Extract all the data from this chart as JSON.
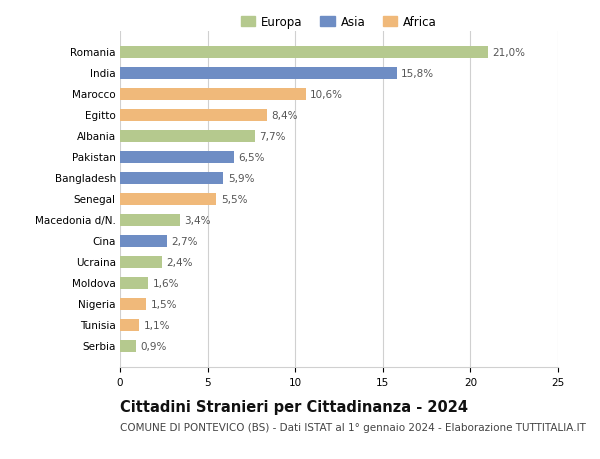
{
  "countries": [
    "Romania",
    "India",
    "Marocco",
    "Egitto",
    "Albania",
    "Pakistan",
    "Bangladesh",
    "Senegal",
    "Macedonia d/N.",
    "Cina",
    "Ucraina",
    "Moldova",
    "Nigeria",
    "Tunisia",
    "Serbia"
  ],
  "values": [
    21.0,
    15.8,
    10.6,
    8.4,
    7.7,
    6.5,
    5.9,
    5.5,
    3.4,
    2.7,
    2.4,
    1.6,
    1.5,
    1.1,
    0.9
  ],
  "labels": [
    "21,0%",
    "15,8%",
    "10,6%",
    "8,4%",
    "7,7%",
    "6,5%",
    "5,9%",
    "5,5%",
    "3,4%",
    "2,7%",
    "2,4%",
    "1,6%",
    "1,5%",
    "1,1%",
    "0,9%"
  ],
  "continents": [
    "Europa",
    "Asia",
    "Africa",
    "Africa",
    "Europa",
    "Asia",
    "Asia",
    "Africa",
    "Europa",
    "Asia",
    "Europa",
    "Europa",
    "Africa",
    "Africa",
    "Europa"
  ],
  "colors": {
    "Europa": "#b5c98e",
    "Asia": "#6e8dc4",
    "Africa": "#f0b97a"
  },
  "xlim": [
    0,
    25
  ],
  "xticks": [
    0,
    5,
    10,
    15,
    20,
    25
  ],
  "title": "Cittadini Stranieri per Cittadinanza - 2024",
  "subtitle": "COMUNE DI PONTEVICO (BS) - Dati ISTAT al 1° gennaio 2024 - Elaborazione TUTTITALIA.IT",
  "background_color": "#ffffff",
  "grid_color": "#d0d0d0",
  "bar_height": 0.55,
  "title_fontsize": 10.5,
  "subtitle_fontsize": 7.5,
  "label_fontsize": 7.5,
  "tick_fontsize": 7.5,
  "legend_fontsize": 8.5
}
